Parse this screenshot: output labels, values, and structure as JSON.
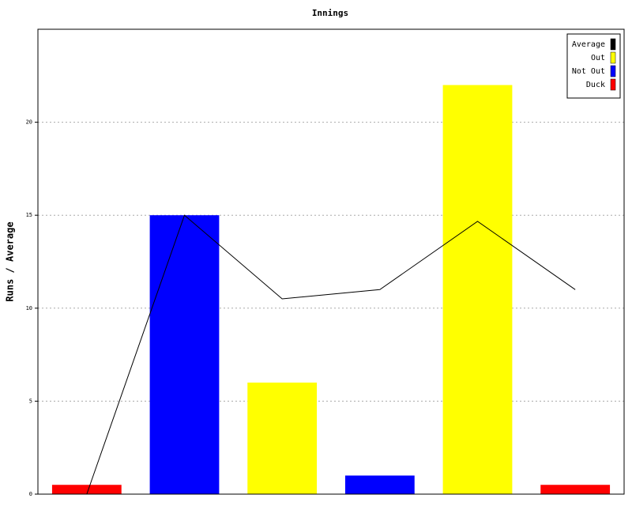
{
  "chart_data": {
    "type": "bar",
    "title": "Innings",
    "y_label": "Runs / Average",
    "categories": [
      null,
      null,
      null,
      null,
      null,
      null
    ],
    "series": [
      {
        "name": "Average",
        "type": "line",
        "color": "#000000",
        "values": [
          0,
          15,
          10.5,
          11,
          14.67,
          11
        ]
      },
      {
        "name": "Out",
        "color": "#ffff00",
        "values": [
          null,
          null,
          6,
          null,
          22,
          null
        ]
      },
      {
        "name": "Not Out",
        "color": "#0000ff",
        "values": [
          null,
          15,
          null,
          1,
          null,
          null
        ]
      },
      {
        "name": "Duck",
        "color": "#ff0000",
        "values": [
          0.5,
          null,
          null,
          null,
          null,
          0.5
        ]
      }
    ],
    "ylim": [
      0,
      25
    ],
    "yticks": [
      0,
      5,
      10,
      15,
      20
    ],
    "grid": true,
    "legend": "top-right"
  }
}
